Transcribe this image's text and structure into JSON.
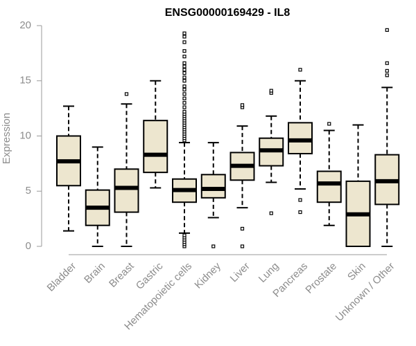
{
  "chart_data": {
    "type": "box",
    "title": "ENSG00000169429 - IL8",
    "xlabel": "",
    "ylabel": "Expression",
    "ylim": [
      0,
      20
    ],
    "yticks": [
      "0",
      "5",
      "10",
      "15",
      "20"
    ],
    "colors": {
      "box_fill": "#ede6cf",
      "stroke": "#000000",
      "axis": "#999999",
      "label": "#8c8c8c"
    },
    "categories": [
      "Bladder",
      "Brain",
      "Breast",
      "Gastric",
      "Hematopoietic cells",
      "Kidney",
      "Liver",
      "Lung",
      "Pancreas",
      "Prostate",
      "Skin",
      "Unknown / Other"
    ],
    "boxes": [
      {
        "category": "Bladder",
        "whisker_low": 1.4,
        "q1": 5.5,
        "median": 7.7,
        "q3": 10.0,
        "whisker_high": 12.7,
        "outliers": []
      },
      {
        "category": "Brain",
        "whisker_low": 0.0,
        "q1": 1.9,
        "median": 3.5,
        "q3": 5.1,
        "whisker_high": 9.0,
        "outliers": []
      },
      {
        "category": "Breast",
        "whisker_low": 0.0,
        "q1": 3.1,
        "median": 5.3,
        "q3": 7.0,
        "whisker_high": 12.9,
        "outliers": [
          13.8
        ]
      },
      {
        "category": "Gastric",
        "whisker_low": 5.3,
        "q1": 6.7,
        "median": 8.3,
        "q3": 11.4,
        "whisker_high": 15.0,
        "outliers": []
      },
      {
        "category": "Hematopoietic cells",
        "whisker_low": 1.2,
        "q1": 4.0,
        "median": 5.1,
        "q3": 6.1,
        "whisker_high": 9.4,
        "outliers": [
          0.0,
          0.2,
          0.4,
          0.6,
          0.8,
          1.0,
          9.6,
          9.8,
          10.0,
          10.2,
          10.4,
          10.6,
          10.8,
          11.0,
          11.2,
          11.4,
          11.6,
          11.8,
          12.0,
          12.2,
          12.6,
          13.0,
          13.4,
          13.8,
          14.2,
          14.5,
          15.0,
          15.3,
          15.7,
          16.0,
          16.3,
          16.6,
          17.2,
          17.7,
          18.5,
          19.0,
          19.3
        ]
      },
      {
        "category": "Kidney",
        "whisker_low": 2.6,
        "q1": 4.4,
        "median": 5.2,
        "q3": 6.5,
        "whisker_high": 9.4,
        "outliers": [
          0.0
        ]
      },
      {
        "category": "Liver",
        "whisker_low": 3.5,
        "q1": 6.0,
        "median": 7.3,
        "q3": 8.5,
        "whisker_high": 10.9,
        "outliers": [
          0.0,
          1.6,
          12.6,
          12.8
        ]
      },
      {
        "category": "Lung",
        "whisker_low": 5.8,
        "q1": 7.3,
        "median": 8.7,
        "q3": 9.8,
        "whisker_high": 11.8,
        "outliers": [
          3.0,
          13.9,
          14.1
        ]
      },
      {
        "category": "Pancreas",
        "whisker_low": 5.2,
        "q1": 8.4,
        "median": 9.6,
        "q3": 11.2,
        "whisker_high": 15.0,
        "outliers": [
          3.1,
          4.2,
          16.0
        ]
      },
      {
        "category": "Prostate",
        "whisker_low": 1.9,
        "q1": 4.0,
        "median": 5.7,
        "q3": 6.8,
        "whisker_high": 10.5,
        "outliers": [
          11.1
        ]
      },
      {
        "category": "Skin",
        "whisker_low": 0.0,
        "q1": 0.0,
        "median": 2.9,
        "q3": 5.9,
        "whisker_high": 11.0,
        "outliers": []
      },
      {
        "category": "Unknown / Other",
        "whisker_low": 0.0,
        "q1": 3.8,
        "median": 5.9,
        "q3": 8.3,
        "whisker_high": 14.4,
        "outliers": [
          15.5,
          15.9,
          16.6,
          19.6
        ]
      }
    ]
  }
}
